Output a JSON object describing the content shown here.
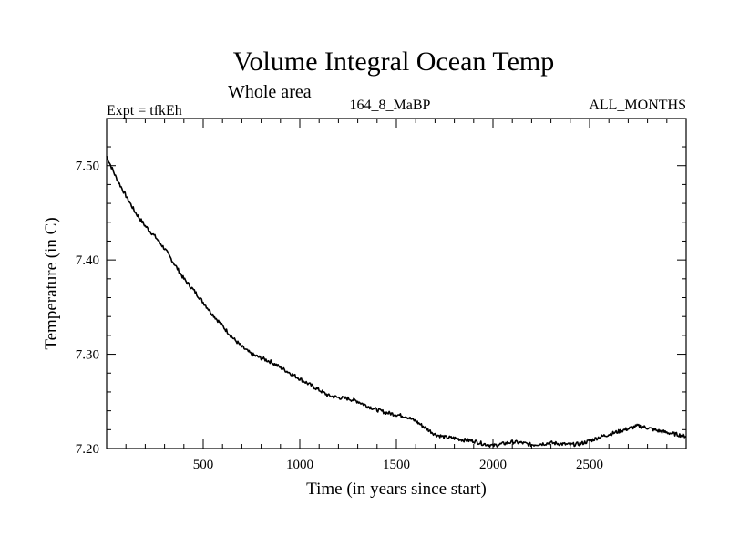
{
  "chart_data": {
    "type": "line",
    "title": "Volume Integral Ocean Temp",
    "subtitle": "Whole area",
    "experiment": "Expt = tfkEh",
    "period": "164_8_MaBP",
    "months": "ALL_MONTHS",
    "xlabel": "Time (in years since start)",
    "ylabel": "Temperature (in C)",
    "xlim": [
      0,
      3000
    ],
    "ylim": [
      7.2,
      7.55
    ],
    "xticks": [
      500,
      1000,
      1500,
      2000,
      2500
    ],
    "xtick_labels": [
      "500",
      "1000",
      "1500",
      "2000",
      "2500"
    ],
    "yticks": [
      7.2,
      7.3,
      7.4,
      7.5
    ],
    "ytick_labels": [
      "7.20",
      "7.30",
      "7.40",
      "7.50"
    ],
    "grid": false,
    "line_color": "#000000",
    "series": [
      {
        "x": [
          0,
          50,
          100,
          150,
          200,
          250,
          300,
          350,
          400,
          450,
          500,
          550,
          600,
          650,
          700,
          750,
          800,
          850,
          900,
          950,
          1000,
          1050,
          1100,
          1150,
          1200,
          1250,
          1300,
          1350,
          1400,
          1450,
          1500,
          1550,
          1600,
          1650,
          1700,
          1750,
          1800,
          1850,
          1900,
          1950,
          2000,
          2050,
          2100,
          2150,
          2200,
          2250,
          2300,
          2350,
          2400,
          2450,
          2500,
          2550,
          2600,
          2650,
          2700,
          2750,
          2800,
          2850,
          2900,
          2950,
          3000
        ],
        "values": [
          7.51,
          7.487,
          7.468,
          7.45,
          7.436,
          7.425,
          7.412,
          7.396,
          7.38,
          7.368,
          7.355,
          7.342,
          7.33,
          7.318,
          7.308,
          7.3,
          7.296,
          7.292,
          7.286,
          7.28,
          7.274,
          7.268,
          7.262,
          7.256,
          7.254,
          7.253,
          7.25,
          7.245,
          7.241,
          7.238,
          7.236,
          7.234,
          7.229,
          7.222,
          7.215,
          7.212,
          7.211,
          7.209,
          7.208,
          7.205,
          7.203,
          7.205,
          7.207,
          7.206,
          7.204,
          7.205,
          7.206,
          7.205,
          7.204,
          7.205,
          7.208,
          7.212,
          7.215,
          7.218,
          7.221,
          7.224,
          7.222,
          7.219,
          7.217,
          7.215,
          7.213
        ]
      }
    ]
  }
}
